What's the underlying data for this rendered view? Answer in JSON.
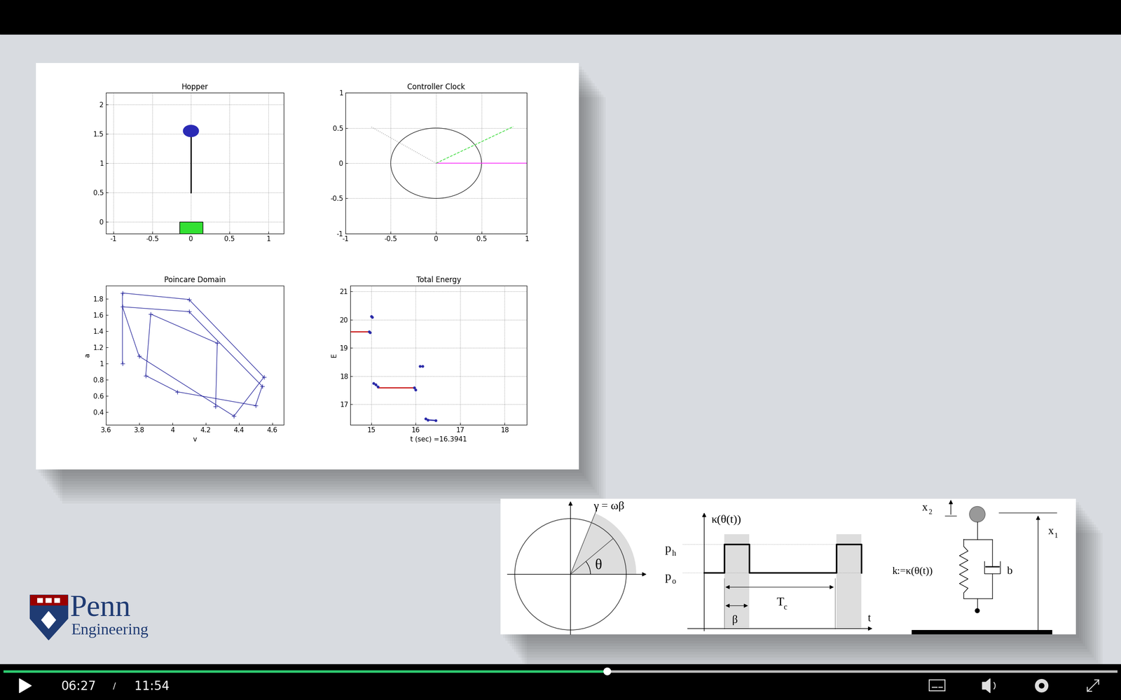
{
  "chart_data": [
    {
      "type": "hopper",
      "title": "Hopper",
      "xlim": [
        -1.1,
        1.2
      ],
      "ylim": [
        -0.2,
        2.2
      ],
      "xticks": [
        -1,
        -0.5,
        0,
        0.5,
        1
      ],
      "yticks": [
        0,
        0.5,
        1,
        1.5,
        2
      ],
      "grid": true,
      "body": {
        "x": 0,
        "y": 1.55,
        "color": "#2a2ab5"
      },
      "leg": {
        "x": [
          0,
          0
        ],
        "y": [
          0.5,
          1.5
        ],
        "color": "#000000"
      },
      "ground": {
        "x": [
          -0.15,
          0.15
        ],
        "y": [
          -0.2,
          0
        ],
        "color": "#33e033"
      }
    },
    {
      "type": "clock",
      "title": "Controller Clock",
      "xlim": [
        -1,
        1
      ],
      "ylim": [
        -1,
        1
      ],
      "xticks": [
        -1,
        -0.5,
        0,
        0.5,
        1
      ],
      "yticks": [
        -1,
        -0.5,
        0,
        0.5,
        1
      ],
      "grid": true,
      "circle": {
        "x": 0,
        "y": 0,
        "radius": 0.5,
        "color": "#000000"
      },
      "series": [
        {
          "color": "#ff33ff",
          "line_style": "solid",
          "x": [
            0,
            1
          ],
          "values": [
            0,
            0
          ]
        },
        {
          "color": "#44dd44",
          "line_style": "dashed",
          "x": [
            0,
            0.85
          ],
          "values": [
            0,
            0.52
          ]
        },
        {
          "color": "#aaaaaa",
          "line_style": "dotted",
          "x": [
            0,
            -0.72
          ],
          "values": [
            0,
            0.52
          ]
        }
      ]
    },
    {
      "type": "line",
      "title": "Poincare Domain",
      "x_label": "v",
      "y_label": "a",
      "xlim": [
        3.6,
        4.67
      ],
      "ylim": [
        0.24,
        1.96
      ],
      "xticks": [
        3.6,
        3.8,
        4,
        4.2,
        4.4,
        4.6
      ],
      "yticks": [
        0.4,
        0.6,
        0.8,
        1,
        1.2,
        1.4,
        1.6,
        1.8
      ],
      "grid": false,
      "series": [
        {
          "color": "#2f2fa0",
          "line_style": "solid",
          "marker": "plus",
          "x": [
            3.7,
            3.7,
            4.1,
            4.55,
            4.37,
            3.8,
            3.7,
            4.1,
            4.54,
            4.5,
            4.03,
            3.84,
            3.87,
            4.27,
            4.26
          ],
          "values": [
            1.0,
            1.87,
            1.79,
            0.83,
            0.35,
            1.09,
            1.7,
            1.64,
            0.72,
            0.48,
            0.65,
            0.85,
            1.61,
            1.25,
            0.47
          ]
        }
      ]
    },
    {
      "type": "line",
      "title": "Total Energy",
      "x_label": "t (sec) =16.3941",
      "y_label": "E",
      "xlim": [
        14.53,
        18.5
      ],
      "ylim": [
        16.27,
        21.2
      ],
      "xticks": [
        15,
        16,
        17,
        18
      ],
      "yticks": [
        17,
        18,
        19,
        20,
        21
      ],
      "grid": true,
      "series": [
        {
          "color": "#cc2222",
          "line_style": "solid",
          "x": [
            14.55,
            14.95
          ],
          "values": [
            19.57,
            19.57
          ]
        },
        {
          "color": "#cc2222",
          "line_style": "solid",
          "x": [
            15.15,
            15.97
          ],
          "values": [
            17.6,
            17.6
          ]
        },
        {
          "color": "#2a2aa8",
          "line_style": "solid",
          "marker": "dot",
          "x": [
            14.95,
            14.97
          ],
          "values": [
            19.57,
            19.55
          ]
        },
        {
          "color": "#2a2aa8",
          "line_style": "solid",
          "marker": "dot",
          "x": [
            15.0,
            15.02
          ],
          "values": [
            20.12,
            20.08
          ]
        },
        {
          "color": "#2a2aa8",
          "line_style": "solid",
          "marker": "dot",
          "x": [
            15.05,
            15.1,
            15.15
          ],
          "values": [
            17.75,
            17.7,
            17.62
          ]
        },
        {
          "color": "#2a2aa8",
          "line_style": "solid",
          "marker": "dot",
          "x": [
            15.97,
            16.0
          ],
          "values": [
            17.6,
            17.52
          ]
        },
        {
          "color": "#2a2aa8",
          "line_style": "solid",
          "marker": "dot",
          "x": [
            16.1,
            16.15
          ],
          "values": [
            18.35,
            18.35
          ]
        },
        {
          "color": "#2a2aa8",
          "line_style": "solid",
          "marker": "dot",
          "x": [
            16.22,
            16.27,
            16.45
          ],
          "values": [
            16.5,
            16.45,
            16.43
          ]
        }
      ]
    }
  ],
  "diagram": {
    "clock": {
      "gamma_label": "γ = ωβ",
      "theta_label": "θ"
    },
    "pulse": {
      "y_label": "κ(θ(t))",
      "high": {
        "base": "p",
        "sub": "h"
      },
      "low": {
        "base": "p",
        "sub": "o"
      },
      "period": {
        "base": "T",
        "sub": "c"
      },
      "width": "β",
      "x_label": "t"
    },
    "model": {
      "x2": {
        "base": "x",
        "sub": "2"
      },
      "x1": {
        "base": "x",
        "sub": "1"
      },
      "spring": "k:=κ(θ(t))",
      "damper": "b"
    }
  },
  "logo": {
    "name": "Penn",
    "subtitle": "Engineering"
  },
  "player": {
    "elapsed": "06:27",
    "separator": "/",
    "duration": "11:54"
  }
}
